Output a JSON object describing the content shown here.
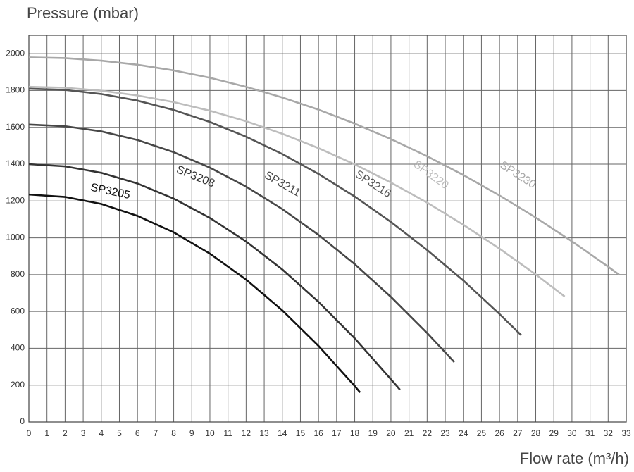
{
  "chart_data": {
    "type": "line",
    "title": "Pressure (mbar)",
    "x_label": "Flow rate (m³/h)",
    "xlim": [
      0,
      33
    ],
    "ylim": [
      0,
      2100
    ],
    "xticks": [
      0,
      1,
      2,
      3,
      4,
      5,
      6,
      7,
      8,
      9,
      10,
      11,
      12,
      13,
      14,
      15,
      16,
      17,
      18,
      19,
      20,
      21,
      22,
      23,
      24,
      25,
      26,
      27,
      28,
      29,
      30,
      31,
      32,
      33
    ],
    "yticks": [
      0,
      200,
      400,
      600,
      800,
      1000,
      1200,
      1400,
      1600,
      1800,
      2000
    ],
    "grid": true,
    "series": [
      {
        "name": "SP3205",
        "color": "#111111",
        "x": [
          0,
          2,
          4,
          6,
          8,
          10,
          12,
          14,
          16,
          18,
          18.3
        ],
        "values": [
          1235,
          1222,
          1184,
          1119,
          1030,
          914,
          773,
          606,
          413,
          195,
          160
        ]
      },
      {
        "name": "SP3208",
        "color": "#333333",
        "x": [
          0,
          2,
          4,
          6,
          8,
          10,
          12,
          14,
          16,
          18,
          20,
          20.5
        ],
        "values": [
          1400,
          1388,
          1353,
          1295,
          1213,
          1108,
          980,
          828,
          652,
          454,
          232,
          175
        ]
      },
      {
        "name": "SP3211",
        "color": "#474747",
        "x": [
          0,
          2,
          4,
          6,
          8,
          10,
          12,
          14,
          16,
          18,
          20,
          22,
          23.5
        ],
        "values": [
          1615,
          1606,
          1578,
          1531,
          1465,
          1381,
          1278,
          1156,
          1016,
          857,
          679,
          483,
          325
        ]
      },
      {
        "name": "SP3216",
        "color": "#555555",
        "x": [
          0,
          2,
          4,
          6,
          8,
          10,
          12,
          14,
          16,
          18,
          20,
          22,
          24,
          26,
          27.2
        ],
        "values": [
          1810,
          1803,
          1781,
          1745,
          1694,
          1629,
          1549,
          1455,
          1347,
          1224,
          1086,
          934,
          768,
          586,
          471
        ]
      },
      {
        "name": "SP3220",
        "color": "#bdbdbd",
        "x": [
          0,
          2,
          4,
          6,
          8,
          10,
          12,
          14,
          16,
          18,
          20,
          22,
          24,
          26,
          28,
          29.6
        ],
        "values": [
          1820,
          1815,
          1799,
          1773,
          1737,
          1690,
          1633,
          1565,
          1487,
          1399,
          1300,
          1191,
          1071,
          941,
          801,
          681
        ]
      },
      {
        "name": "SP3230",
        "color": "#a8a8a8",
        "x": [
          0,
          2,
          4,
          6,
          8,
          10,
          12,
          14,
          16,
          18,
          20,
          22,
          24,
          26,
          28,
          30,
          32,
          32.6
        ],
        "values": [
          1980,
          1976,
          1962,
          1940,
          1909,
          1869,
          1820,
          1762,
          1696,
          1620,
          1536,
          1443,
          1341,
          1230,
          1110,
          981,
          843,
          800
        ]
      }
    ]
  }
}
